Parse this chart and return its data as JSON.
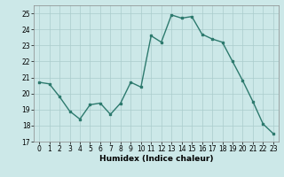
{
  "x": [
    0,
    1,
    2,
    3,
    4,
    5,
    6,
    7,
    8,
    9,
    10,
    11,
    12,
    13,
    14,
    15,
    16,
    17,
    18,
    19,
    20,
    21,
    22,
    23
  ],
  "y": [
    20.7,
    20.6,
    19.8,
    18.9,
    18.4,
    19.3,
    19.4,
    18.7,
    19.4,
    20.7,
    20.4,
    23.6,
    23.2,
    24.9,
    24.7,
    24.8,
    23.7,
    23.4,
    23.2,
    22.0,
    20.8,
    19.5,
    18.1,
    17.5
  ],
  "line_color": "#2d7a6e",
  "marker": "s",
  "marker_size": 2,
  "line_width": 1.0,
  "bg_color": "#cce8e8",
  "grid_color": "#aacccc",
  "xlabel": "Humidex (Indice chaleur)",
  "ylim": [
    17,
    25.5
  ],
  "yticks": [
    17,
    18,
    19,
    20,
    21,
    22,
    23,
    24,
    25
  ],
  "xticks": [
    0,
    1,
    2,
    3,
    4,
    5,
    6,
    7,
    8,
    9,
    10,
    11,
    12,
    13,
    14,
    15,
    16,
    17,
    18,
    19,
    20,
    21,
    22,
    23
  ],
  "tick_fontsize": 5.5,
  "xlabel_fontsize": 6.5
}
